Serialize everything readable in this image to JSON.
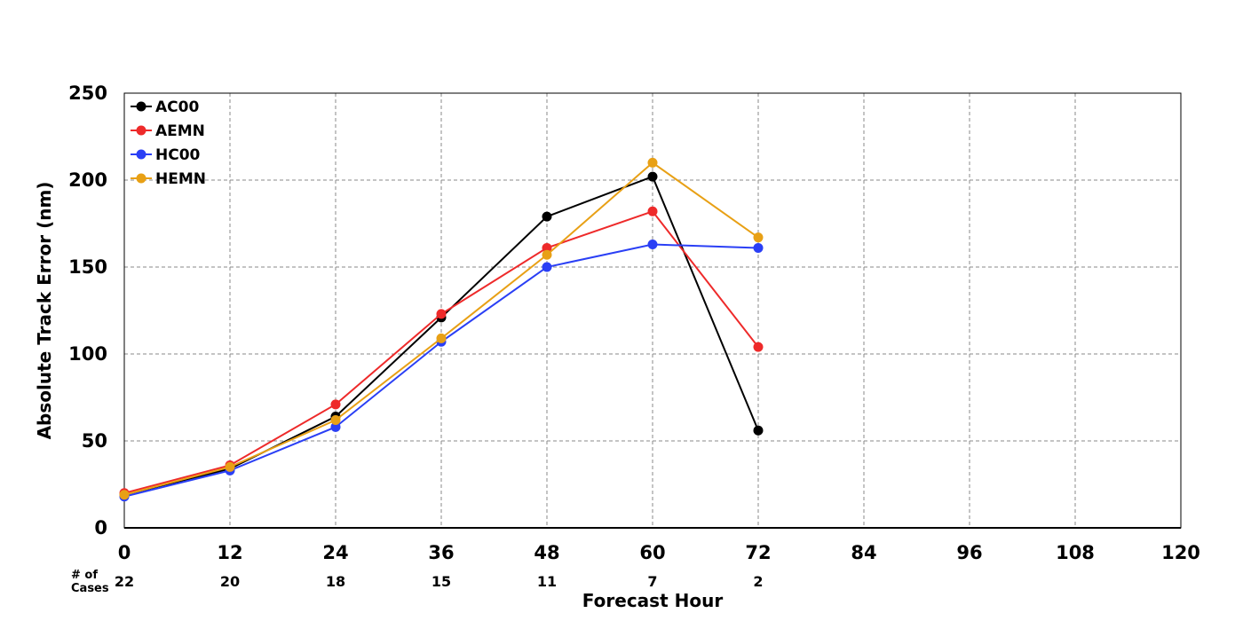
{
  "chart_data": {
    "type": "line",
    "title": "",
    "xlabel": "Forecast Hour",
    "ylabel": "Absolute Track Error (nm)",
    "xlim": [
      0,
      120
    ],
    "ylim": [
      0,
      250
    ],
    "x_ticks": [
      0,
      12,
      24,
      36,
      48,
      60,
      72,
      84,
      96,
      108,
      120
    ],
    "y_ticks": [
      0,
      50,
      100,
      150,
      200,
      250
    ],
    "grid": true,
    "legend_position": "top-left",
    "cases_label": "# of\nCases",
    "cases": [
      {
        "hour": 0,
        "count": 22
      },
      {
        "hour": 12,
        "count": 20
      },
      {
        "hour": 24,
        "count": 18
      },
      {
        "hour": 36,
        "count": 15
      },
      {
        "hour": 48,
        "count": 11
      },
      {
        "hour": 60,
        "count": 7
      },
      {
        "hour": 72,
        "count": 2
      }
    ],
    "x": [
      0,
      12,
      24,
      36,
      48,
      60,
      72
    ],
    "series": [
      {
        "name": "AC00",
        "color": "#000000",
        "values": [
          19,
          34,
          64,
          121,
          179,
          202,
          56
        ]
      },
      {
        "name": "AEMN",
        "color": "#ee2a2a",
        "values": [
          20,
          36,
          71,
          123,
          161,
          182,
          104
        ]
      },
      {
        "name": "HC00",
        "color": "#2a3ff5",
        "values": [
          18,
          33,
          58,
          107,
          150,
          163,
          161
        ]
      },
      {
        "name": "HEMN",
        "color": "#e8a015",
        "values": [
          19,
          35,
          62,
          109,
          157,
          210,
          167
        ]
      }
    ]
  }
}
